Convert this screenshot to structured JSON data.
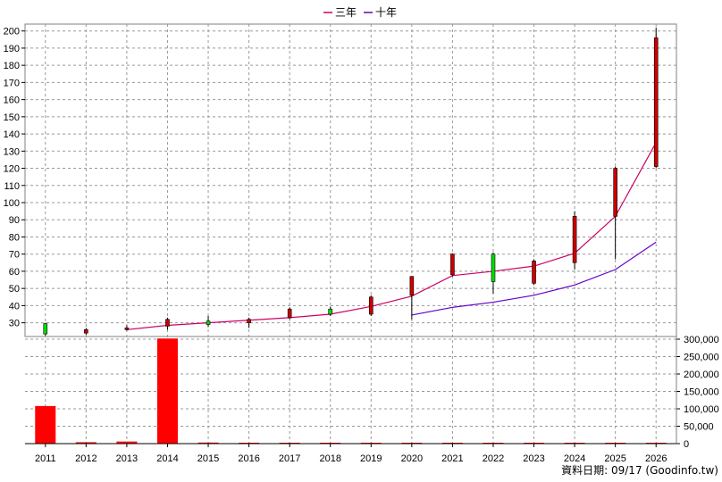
{
  "chart_data": {
    "type": "candlestick+line+bar",
    "categories": [
      "2011",
      "2012",
      "2013",
      "2014",
      "2015",
      "2016",
      "2017",
      "2018",
      "2019",
      "2020",
      "2021",
      "2022",
      "2023",
      "2024",
      "2025",
      "2026"
    ],
    "legend": [
      {
        "name": "三年",
        "color": "#cc0066"
      },
      {
        "name": "十年",
        "color": "#6600cc"
      }
    ],
    "legend_position": "top-center",
    "grid": true,
    "price_axis": {
      "ticks": [
        30,
        40,
        50,
        60,
        70,
        80,
        90,
        100,
        110,
        120,
        130,
        140,
        150,
        160,
        170,
        180,
        190,
        200
      ],
      "range": [
        22,
        204
      ]
    },
    "volume_axis": {
      "ticks": [
        "0",
        "50,000",
        "100,000",
        "150,000",
        "200,000",
        "250,000",
        "300,000"
      ],
      "tick_values": [
        0,
        50000,
        100000,
        150000,
        200000,
        250000,
        300000
      ],
      "range": [
        0,
        300000
      ]
    },
    "candles": [
      {
        "year": "2011",
        "open": 23.5,
        "high": 30,
        "low": 22.5,
        "close": 29.5
      },
      {
        "year": "2012",
        "open": 26,
        "high": 27,
        "low": 23,
        "close": 24
      },
      {
        "year": "2013",
        "open": 27,
        "high": 28.5,
        "low": 25.5,
        "close": 26
      },
      {
        "year": "2014",
        "open": 32,
        "high": 33,
        "low": 26,
        "close": 28
      },
      {
        "year": "2015",
        "open": 29,
        "high": 34,
        "low": 27.5,
        "close": 31
      },
      {
        "year": "2016",
        "open": 32,
        "high": 33,
        "low": 27,
        "close": 30
      },
      {
        "year": "2017",
        "open": 38,
        "high": 39,
        "low": 32,
        "close": 33
      },
      {
        "year": "2018",
        "open": 35,
        "high": 39.5,
        "low": 34,
        "close": 38
      },
      {
        "year": "2019",
        "open": 45,
        "high": 46,
        "low": 34,
        "close": 35
      },
      {
        "year": "2020",
        "open": 57,
        "high": 57,
        "low": 32,
        "close": 46
      },
      {
        "year": "2021",
        "open": 70,
        "high": 70.5,
        "low": 57,
        "close": 58
      },
      {
        "year": "2022",
        "open": 54,
        "high": 71,
        "low": 47,
        "close": 70
      },
      {
        "year": "2023",
        "open": 66,
        "high": 67,
        "low": 52,
        "close": 53
      },
      {
        "year": "2024",
        "open": 92,
        "high": 95,
        "low": 61,
        "close": 65
      },
      {
        "year": "2025",
        "open": 120,
        "high": 121,
        "low": 67,
        "close": 92
      },
      {
        "year": "2026",
        "open": 196,
        "high": 202,
        "low": 120,
        "close": 121
      }
    ],
    "series": [
      {
        "name": "三年",
        "x": [
          "2013",
          "2014",
          "2015",
          "2016",
          "2017",
          "2018",
          "2019",
          "2020",
          "2021",
          "2022",
          "2023",
          "2024",
          "2025",
          "2026"
        ],
        "values": [
          26,
          28.5,
          30,
          31.5,
          33,
          35,
          39.5,
          45.5,
          57.5,
          60,
          63,
          70.5,
          92,
          135
        ]
      },
      {
        "name": "十年",
        "x": [
          "2020",
          "2021",
          "2022",
          "2023",
          "2024",
          "2025",
          "2026"
        ],
        "values": [
          34.5,
          39,
          42,
          46,
          52,
          61,
          77
        ]
      }
    ],
    "volume": [
      {
        "year": "2011",
        "value": 108000
      },
      {
        "year": "2012",
        "value": 4000
      },
      {
        "year": "2013",
        "value": 6000
      },
      {
        "year": "2014",
        "value": 302000
      },
      {
        "year": "2015",
        "value": 3000
      },
      {
        "year": "2016",
        "value": 600
      },
      {
        "year": "2017",
        "value": 500
      },
      {
        "year": "2018",
        "value": 500
      },
      {
        "year": "2019",
        "value": 500
      },
      {
        "year": "2020",
        "value": 500
      },
      {
        "year": "2021",
        "value": 500
      },
      {
        "year": "2022",
        "value": 500
      },
      {
        "year": "2023",
        "value": 500
      },
      {
        "year": "2024",
        "value": 500
      },
      {
        "year": "2025",
        "value": 500
      },
      {
        "year": "2026",
        "value": 500
      }
    ],
    "colors": {
      "up": "#ff0000",
      "down": "#00dd00",
      "up_dark": "#cc0000",
      "volume": "#ff0000",
      "grid": "#999999"
    }
  },
  "source_label": "資料日期: 09/17  (Goodinfo.tw)"
}
